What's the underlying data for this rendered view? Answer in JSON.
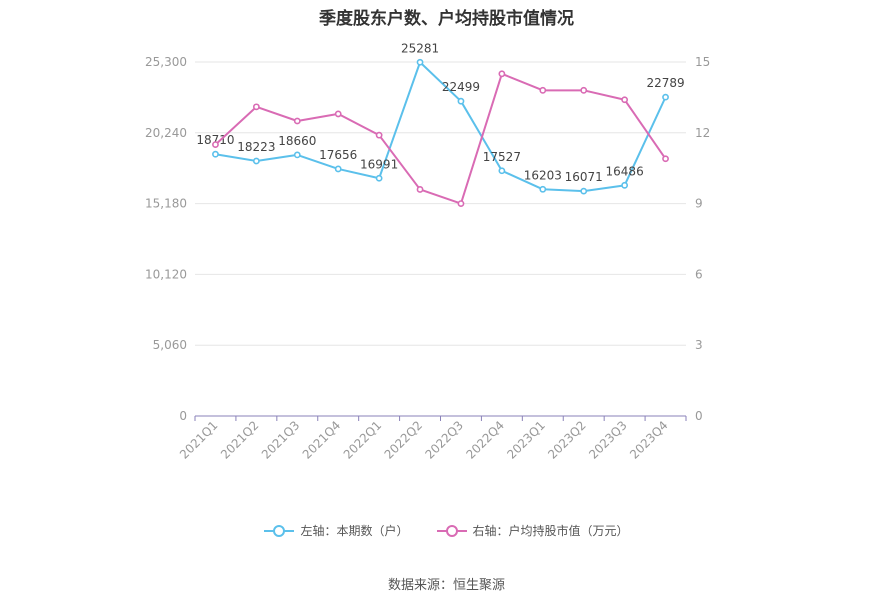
{
  "title": "季度股东户数、户均持股市值情况",
  "source": "数据来源：恒生聚源",
  "legend": {
    "left_label": "左轴：本期数（户）",
    "right_label": "右轴：户均持股市值（万元）"
  },
  "colors": {
    "left_series": "#5bc0eb",
    "right_series": "#d96bb4",
    "grid": "#e6e6e6",
    "axis": "#8a82b8",
    "tick_text": "#999999",
    "label_text": "#444444"
  },
  "chart_data": {
    "type": "line",
    "categories": [
      "2021Q1",
      "2021Q2",
      "2021Q3",
      "2021Q4",
      "2022Q1",
      "2022Q2",
      "2022Q3",
      "2022Q4",
      "2023Q1",
      "2023Q2",
      "2023Q3",
      "2023Q4"
    ],
    "left_axis": {
      "ticks": [
        "0",
        "5,060",
        "10,120",
        "15,180",
        "20,240",
        "25,300"
      ],
      "range": [
        0,
        25300
      ]
    },
    "right_axis": {
      "ticks": [
        "0",
        "3",
        "6",
        "9",
        "12",
        "15"
      ],
      "range": [
        0,
        15
      ]
    },
    "series": [
      {
        "name": "左轴：本期数（户）",
        "axis": "left",
        "values": [
          18710,
          18223,
          18660,
          17656,
          16991,
          25281,
          22499,
          17527,
          16203,
          16071,
          16486,
          22789
        ],
        "labels": [
          "18710",
          "18223",
          "18660",
          "17656",
          "16991",
          "25281",
          "22499",
          "17527",
          "16203",
          "16071",
          "16486",
          "22789"
        ]
      },
      {
        "name": "右轴：户均持股市值（万元）",
        "axis": "right",
        "values": [
          11.5,
          13.1,
          12.5,
          12.8,
          11.9,
          9.6,
          9.0,
          14.5,
          13.8,
          13.8,
          13.4,
          10.9
        ]
      }
    ],
    "grid": true,
    "legend_position": "bottom"
  }
}
